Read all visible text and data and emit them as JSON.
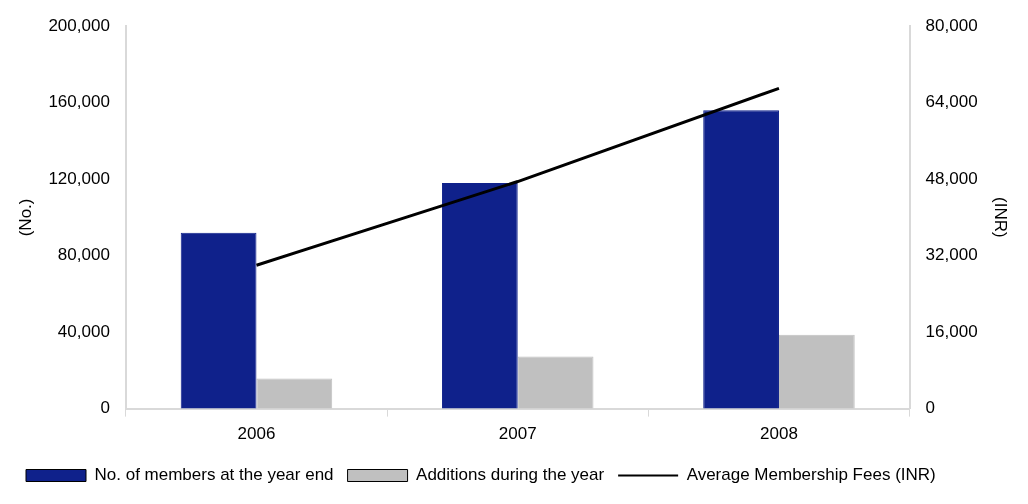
{
  "chart_data": {
    "type": "bar",
    "categories": [
      "2006",
      "2007",
      "2008"
    ],
    "series": [
      {
        "name": "No. of members at the year end",
        "color": "#0f218b",
        "values": [
          92000,
          118000,
          156000
        ]
      },
      {
        "name": "Additions during the year",
        "color": "#c0c0c0",
        "values": [
          15800,
          27300,
          38600
        ]
      },
      {
        "name": "Average Membership Fees (INR)",
        "type": "line",
        "axis": "y2",
        "color": "#000000",
        "values": [
          30000,
          47500,
          67000
        ]
      }
    ],
    "ylabel": "(No.)",
    "y2label": "(INR)",
    "ylim": [
      0,
      200000
    ],
    "yticks": [
      0,
      {
        "value": 40000,
        "label": "40,000"
      },
      {
        "value": 80000,
        "label": "80,000"
      },
      {
        "value": 120000,
        "label": "120,000"
      },
      {
        "value": 160000,
        "label": "160,000"
      },
      {
        "value": 200000,
        "label": "200,000"
      }
    ],
    "y2lim": [
      0,
      80000
    ],
    "y2ticks": [
      0,
      {
        "value": 16000,
        "label": "16,000"
      },
      {
        "value": 32000,
        "label": "32,000"
      },
      {
        "value": 48000,
        "label": "48,000"
      },
      {
        "value": 64000,
        "label": "64,000"
      },
      {
        "value": 80000,
        "label": "80,000"
      }
    ],
    "grid": false,
    "legend": "bottom",
    "marker": "none",
    "line_style": "solid"
  }
}
